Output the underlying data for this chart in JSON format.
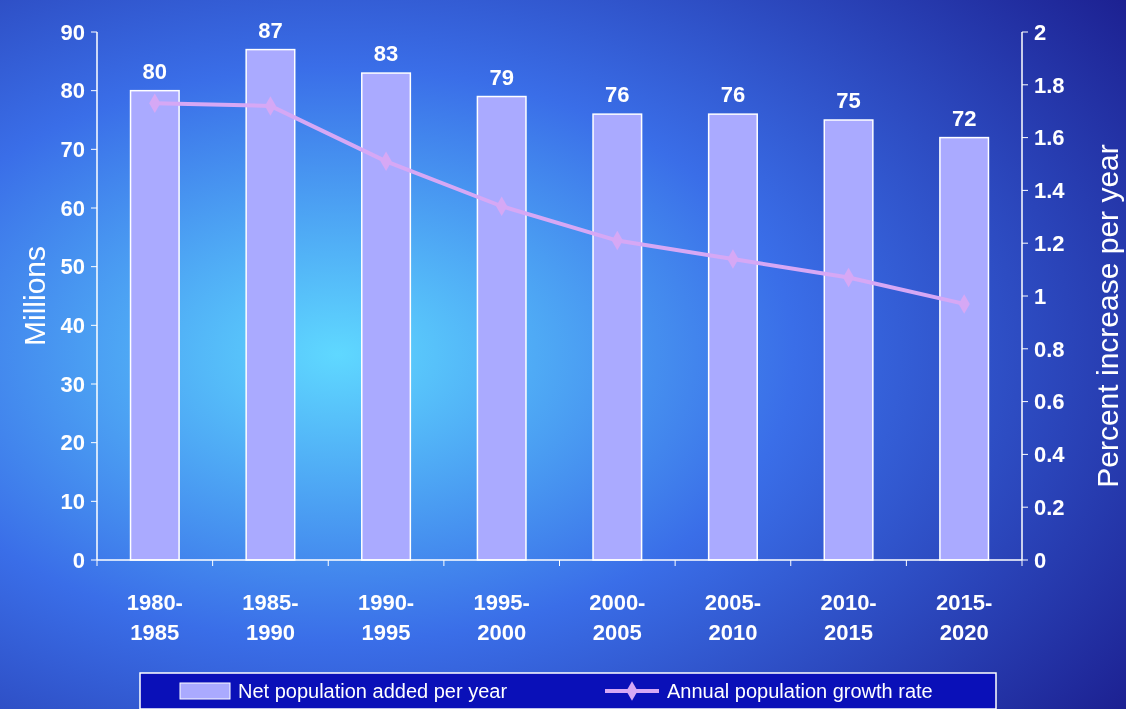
{
  "chart_data": {
    "type": "bar",
    "ylabel": "Millions",
    "y2label": "Percent increase per year",
    "categories": [
      "1980-\n1985",
      "1985-\n1990",
      "1990-\n1995",
      "1995-\n2000",
      "2000-\n2005",
      "2005-\n2010",
      "2010-\n2015",
      "2015-\n2020"
    ],
    "series": [
      {
        "name": "Net population added per year",
        "color": "#aaaaff",
        "values": [
          80,
          87,
          83,
          79,
          76,
          76,
          75,
          72
        ],
        "value_labels": [
          "80",
          "87",
          "83",
          "79",
          "76",
          "76",
          "75",
          "72"
        ]
      },
      {
        "name": "Annual population growth rate",
        "type": "line",
        "axis": "y2",
        "color": "#d6a8f5",
        "marker": "diamond",
        "values": [
          1.73,
          1.72,
          1.51,
          1.34,
          1.21,
          1.14,
          1.07,
          0.97
        ]
      }
    ],
    "ylim": [
      0,
      90
    ],
    "yticks": [
      0,
      10,
      20,
      30,
      40,
      50,
      60,
      70,
      80,
      90
    ],
    "y2lim": [
      0,
      2
    ],
    "y2ticks": [
      0,
      0.2,
      0.4,
      0.6,
      0.8,
      1,
      1.2,
      1.4,
      1.6,
      1.8,
      2
    ],
    "legend": "bottom",
    "grid": false
  }
}
